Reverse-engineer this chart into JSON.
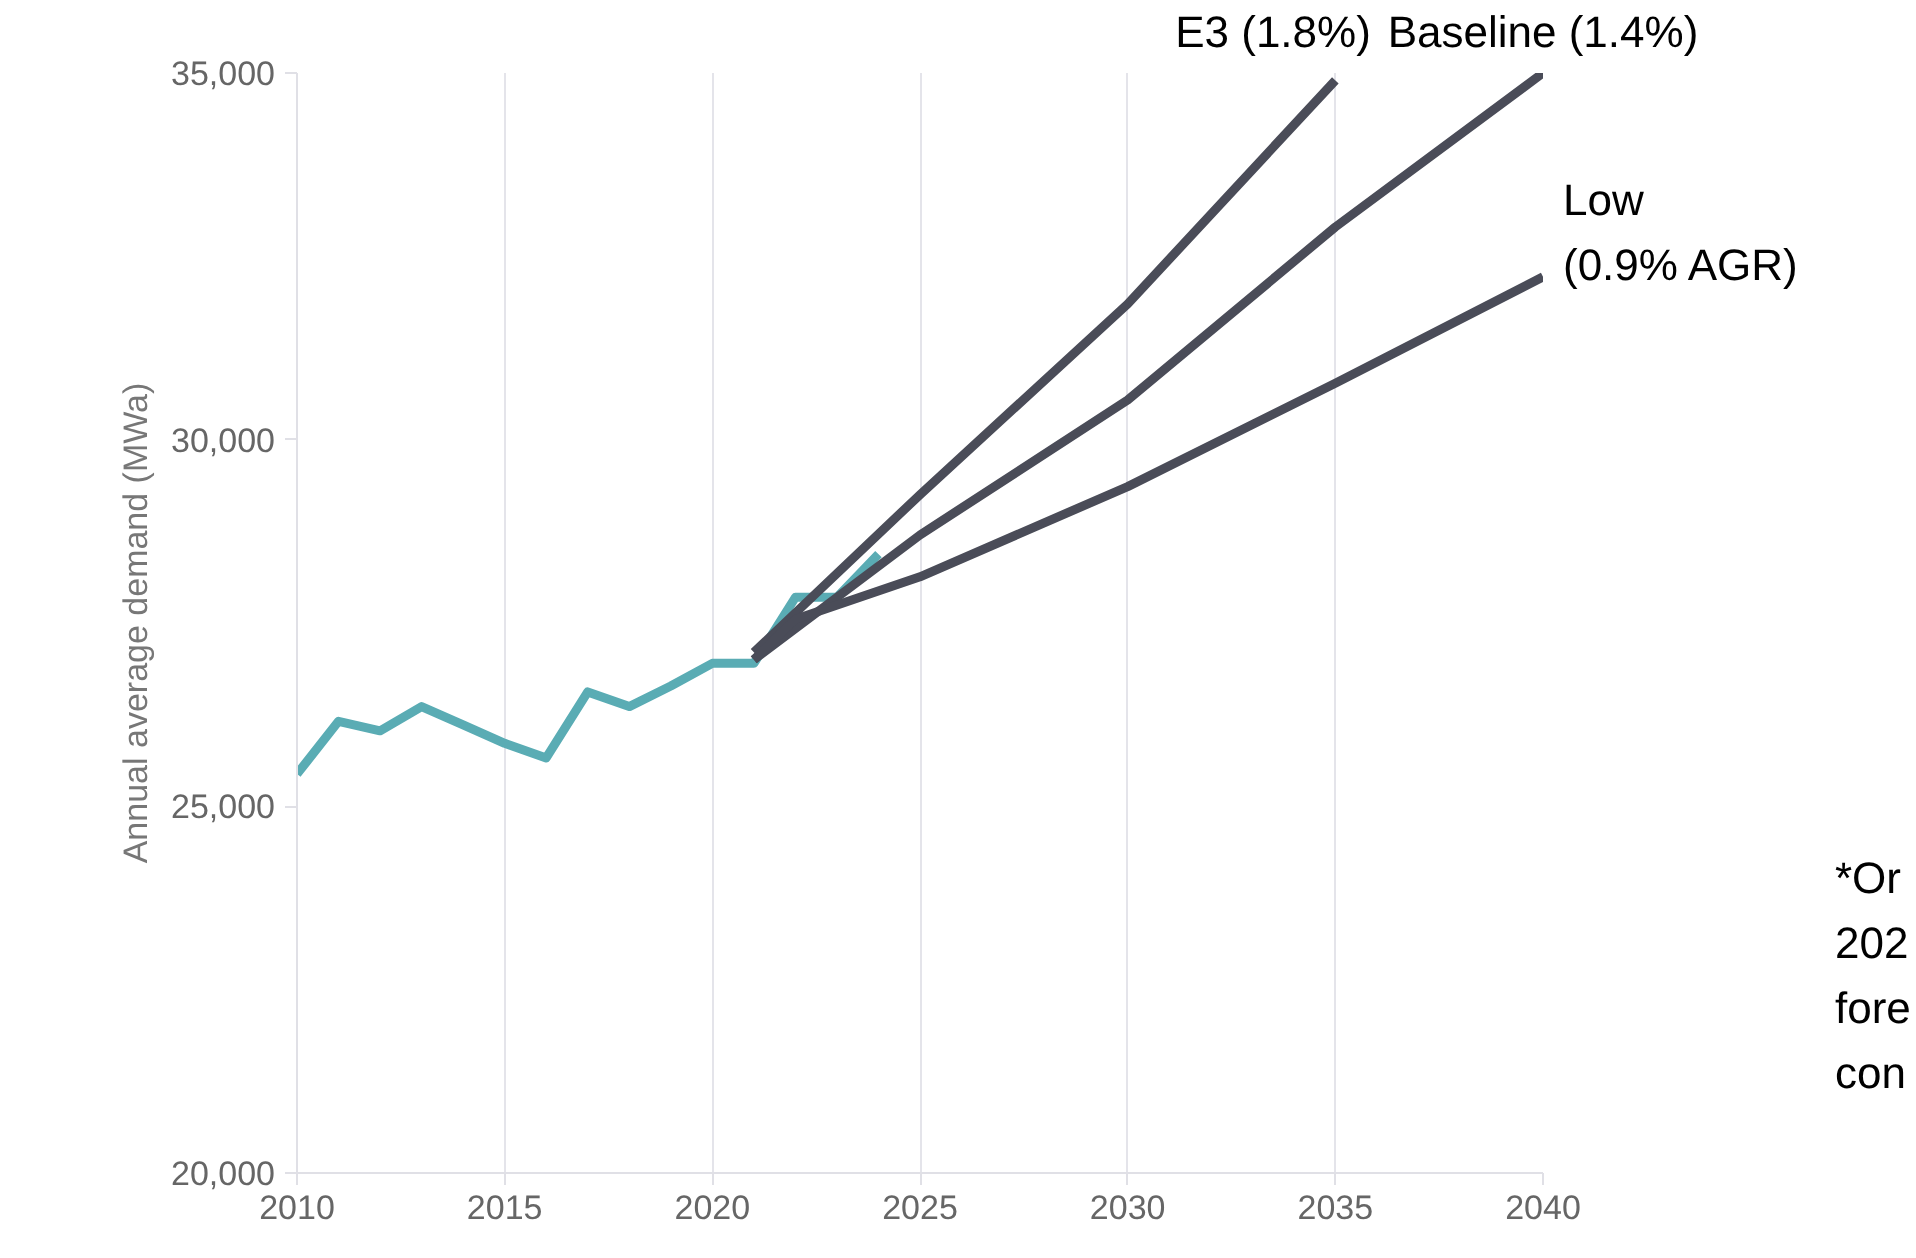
{
  "chart_data": {
    "type": "line",
    "ylabel": "Annual average demand (MWa)",
    "xlim": [
      2010,
      2040
    ],
    "xticks": [
      2010,
      2015,
      2020,
      2025,
      2030,
      2035,
      2040
    ],
    "ylim": [
      20000,
      35000
    ],
    "yticks": [
      {
        "value": 20000,
        "label": "20,000"
      },
      {
        "value": 25000,
        "label": "25,000"
      },
      {
        "value": 30000,
        "label": "30,000"
      },
      {
        "value": 35000,
        "label": "35,000"
      }
    ],
    "grid": "x",
    "legend": false,
    "marker": "none",
    "line_style": "solid",
    "series": [
      {
        "color": "#5aacb4",
        "x": [
          2010,
          2011,
          2012,
          2013,
          2014,
          2015,
          2016,
          2017,
          2018,
          2019,
          2020,
          2021,
          2022,
          2023,
          2024
        ],
        "values": [
          25440,
          26160,
          26030,
          26360,
          26110,
          25860,
          25660,
          26560,
          26360,
          26640,
          26950,
          26950,
          27850,
          27850,
          28440
        ]
      },
      {
        "name": "E3 (1.8%)",
        "color": "#4a4c58",
        "x": [
          2021,
          2025,
          2030,
          2035
        ],
        "values": [
          27100,
          29250,
          31850,
          34900
        ]
      },
      {
        "name": "Baseline (1.4%)",
        "color": "#4a4c58",
        "x": [
          2021,
          2025,
          2030,
          2035,
          2040
        ],
        "values": [
          27000,
          28700,
          30540,
          32900,
          35000
        ]
      },
      {
        "name": "Low\n(0.9% AGR)",
        "color": "#4a4c58",
        "x": [
          2021,
          2022,
          2025,
          2030,
          2035,
          2040
        ],
        "values": [
          27000,
          27550,
          28130,
          29360,
          30770,
          32220
        ]
      }
    ],
    "annotations": [
      "*Or\n202\nfore\ncon"
    ]
  }
}
